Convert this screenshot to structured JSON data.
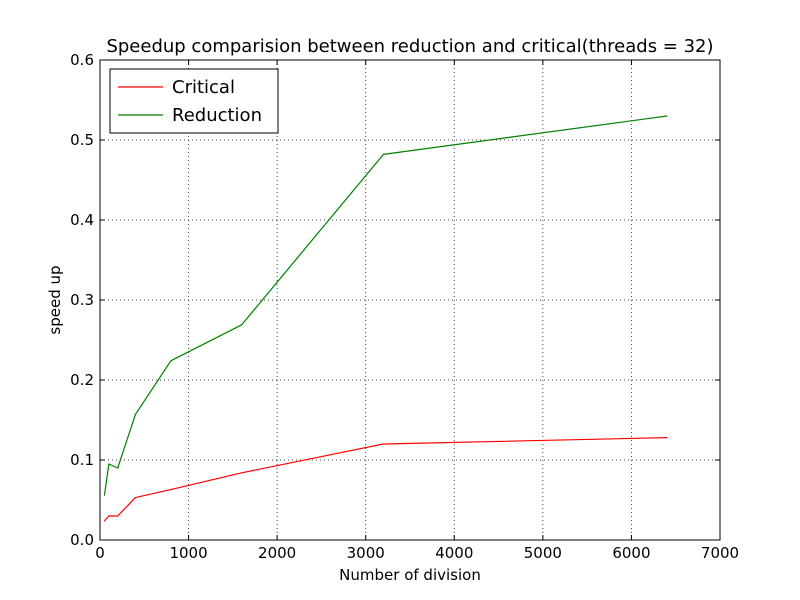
{
  "chart_data": {
    "type": "line",
    "title": "Speedup comparision between reduction and critical(threads = 32)",
    "xlabel": "Number of division",
    "ylabel": "speed up",
    "xlim": [
      0,
      7000
    ],
    "ylim": [
      0,
      0.6
    ],
    "xticks": [
      0,
      1000,
      2000,
      3000,
      4000,
      5000,
      6000,
      7000
    ],
    "xtick_labels": [
      "0",
      "1000",
      "2000",
      "3000",
      "4000",
      "5000",
      "6000",
      "7000"
    ],
    "yticks": [
      0.0,
      0.1,
      0.2,
      0.3,
      0.4,
      0.5,
      0.6
    ],
    "ytick_labels": [
      "0.0",
      "0.1",
      "0.2",
      "0.3",
      "0.4",
      "0.5",
      "0.6"
    ],
    "grid": true,
    "legend_position": "top-left",
    "x": [
      50,
      100,
      200,
      400,
      800,
      1600,
      3200,
      6400
    ],
    "series": [
      {
        "name": "Critical",
        "color": "#ff0000",
        "values": [
          0.024,
          0.03,
          0.03,
          0.053,
          0.063,
          0.084,
          0.12,
          0.128
        ]
      },
      {
        "name": "Reduction",
        "color": "#008000",
        "values": [
          0.056,
          0.095,
          0.09,
          0.157,
          0.224,
          0.269,
          0.482,
          0.53
        ]
      }
    ]
  }
}
